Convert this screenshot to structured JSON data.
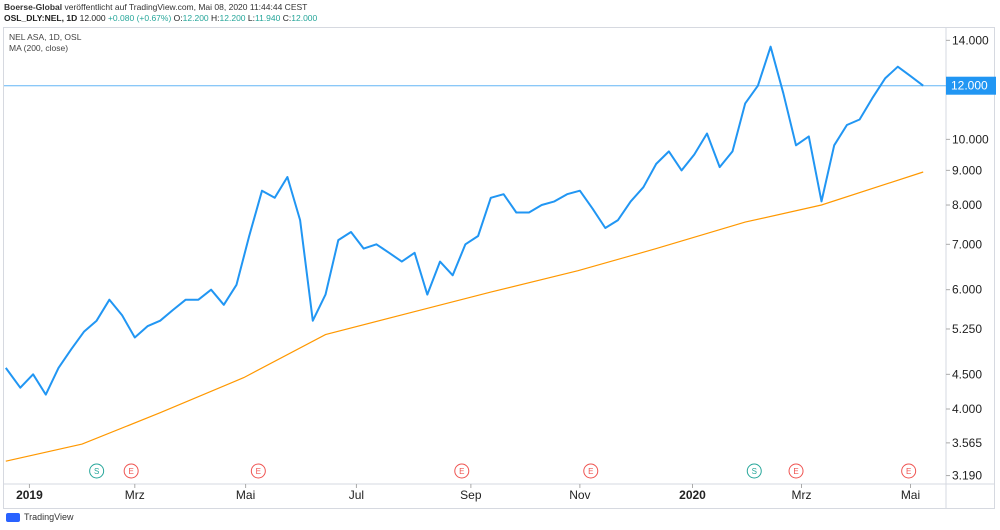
{
  "header": {
    "publisher": "Boerse-Global",
    "published_text": "veröffentlicht auf TradingView.com, Mai 08, 2020 11:44:44 CEST",
    "symbol_line": "OSL_DLY:NEL, 1D",
    "last_price": "12.000",
    "change": "+0.080 (+0.67%)",
    "open_label": "O:",
    "open": "12.200",
    "high_label": "H:",
    "high": "12.200",
    "low_label": "L:",
    "low": "11.940",
    "close_label": "C:",
    "close": "12.000"
  },
  "legend": {
    "series_title": "NEL ASA, 1D, OSL",
    "indicator": "MA (200, close)"
  },
  "footer": {
    "brand": "TradingView"
  },
  "colors": {
    "price": "#2196f3",
    "ma": "#ff9800",
    "last_line": "#64b5f6",
    "badge_bg": "#2196f3",
    "event_s": "#26a69a",
    "event_e": "#ef5350"
  },
  "chart_data": {
    "type": "line",
    "title": "NEL ASA, 1D, OSL",
    "y_scale": "log",
    "ylim": [
      3.1,
      14.6
    ],
    "y_ticks": [
      "14.000",
      "12.000",
      "10.000",
      "9.000",
      "8.000",
      "7.000",
      "6.000",
      "5.250",
      "4.500",
      "4.000",
      "3.565",
      "3.190"
    ],
    "x_labels": [
      "2019",
      "Mrz",
      "Mai",
      "Jul",
      "Sep",
      "Nov",
      "2020",
      "Mrz",
      "Mai"
    ],
    "last_value_label": "12.000",
    "series": [
      {
        "name": "NEL ASA",
        "x": [
          "2018-12-20",
          "2018-12-28",
          "2019-01-04",
          "2019-01-11",
          "2019-01-18",
          "2019-01-25",
          "2019-02-01",
          "2019-02-08",
          "2019-02-15",
          "2019-02-22",
          "2019-03-01",
          "2019-03-08",
          "2019-03-15",
          "2019-03-22",
          "2019-03-29",
          "2019-04-05",
          "2019-04-12",
          "2019-04-19",
          "2019-04-26",
          "2019-05-03",
          "2019-05-10",
          "2019-05-17",
          "2019-05-24",
          "2019-05-31",
          "2019-06-07",
          "2019-06-14",
          "2019-06-21",
          "2019-06-28",
          "2019-07-05",
          "2019-07-12",
          "2019-07-19",
          "2019-07-26",
          "2019-08-02",
          "2019-08-09",
          "2019-08-16",
          "2019-08-23",
          "2019-08-30",
          "2019-09-06",
          "2019-09-13",
          "2019-09-20",
          "2019-09-27",
          "2019-10-04",
          "2019-10-11",
          "2019-10-18",
          "2019-10-25",
          "2019-11-01",
          "2019-11-08",
          "2019-11-15",
          "2019-11-22",
          "2019-11-29",
          "2019-12-06",
          "2019-12-13",
          "2019-12-20",
          "2019-12-27",
          "2020-01-03",
          "2020-01-10",
          "2020-01-17",
          "2020-01-24",
          "2020-01-31",
          "2020-02-07",
          "2020-02-14",
          "2020-02-21",
          "2020-02-28",
          "2020-03-06",
          "2020-03-13",
          "2020-03-20",
          "2020-03-27",
          "2020-04-03",
          "2020-04-10",
          "2020-04-17",
          "2020-04-24",
          "2020-05-01",
          "2020-05-08"
        ],
        "values": [
          4.6,
          4.3,
          4.5,
          4.2,
          4.6,
          4.9,
          5.2,
          5.4,
          5.8,
          5.5,
          5.1,
          5.3,
          5.4,
          5.6,
          5.8,
          5.8,
          6.0,
          5.7,
          6.1,
          7.2,
          8.4,
          8.2,
          8.8,
          7.6,
          5.4,
          5.9,
          7.1,
          7.3,
          6.9,
          7.0,
          6.8,
          6.6,
          6.8,
          5.9,
          6.6,
          6.3,
          7.0,
          7.2,
          8.2,
          8.3,
          7.8,
          7.8,
          8.0,
          8.1,
          8.3,
          8.4,
          7.9,
          7.4,
          7.6,
          8.1,
          8.5,
          9.2,
          9.6,
          9.0,
          9.5,
          10.2,
          9.1,
          9.6,
          11.3,
          12.0,
          13.7,
          11.7,
          9.8,
          10.1,
          8.1,
          9.8,
          10.5,
          10.7,
          11.5,
          12.3,
          12.8,
          12.4,
          12.0
        ]
      },
      {
        "name": "MA (200, close)",
        "x": [
          "2018-12-20",
          "2019-01-31",
          "2019-03-15",
          "2019-04-30",
          "2019-06-14",
          "2019-07-31",
          "2019-09-13",
          "2019-10-31",
          "2019-12-13",
          "2020-01-31",
          "2020-03-13",
          "2020-05-08"
        ],
        "values": [
          3.35,
          3.55,
          3.95,
          4.45,
          5.15,
          5.55,
          5.95,
          6.4,
          6.9,
          7.55,
          8.0,
          8.95
        ]
      }
    ],
    "events": [
      {
        "date": "2019-02-08",
        "label": "S"
      },
      {
        "date": "2019-02-27",
        "label": "E"
      },
      {
        "date": "2019-05-08",
        "label": "E"
      },
      {
        "date": "2019-08-28",
        "label": "E"
      },
      {
        "date": "2019-11-07",
        "label": "E"
      },
      {
        "date": "2020-02-05",
        "label": "S"
      },
      {
        "date": "2020-02-28",
        "label": "E"
      },
      {
        "date": "2020-04-30",
        "label": "E"
      }
    ],
    "grid": false
  }
}
